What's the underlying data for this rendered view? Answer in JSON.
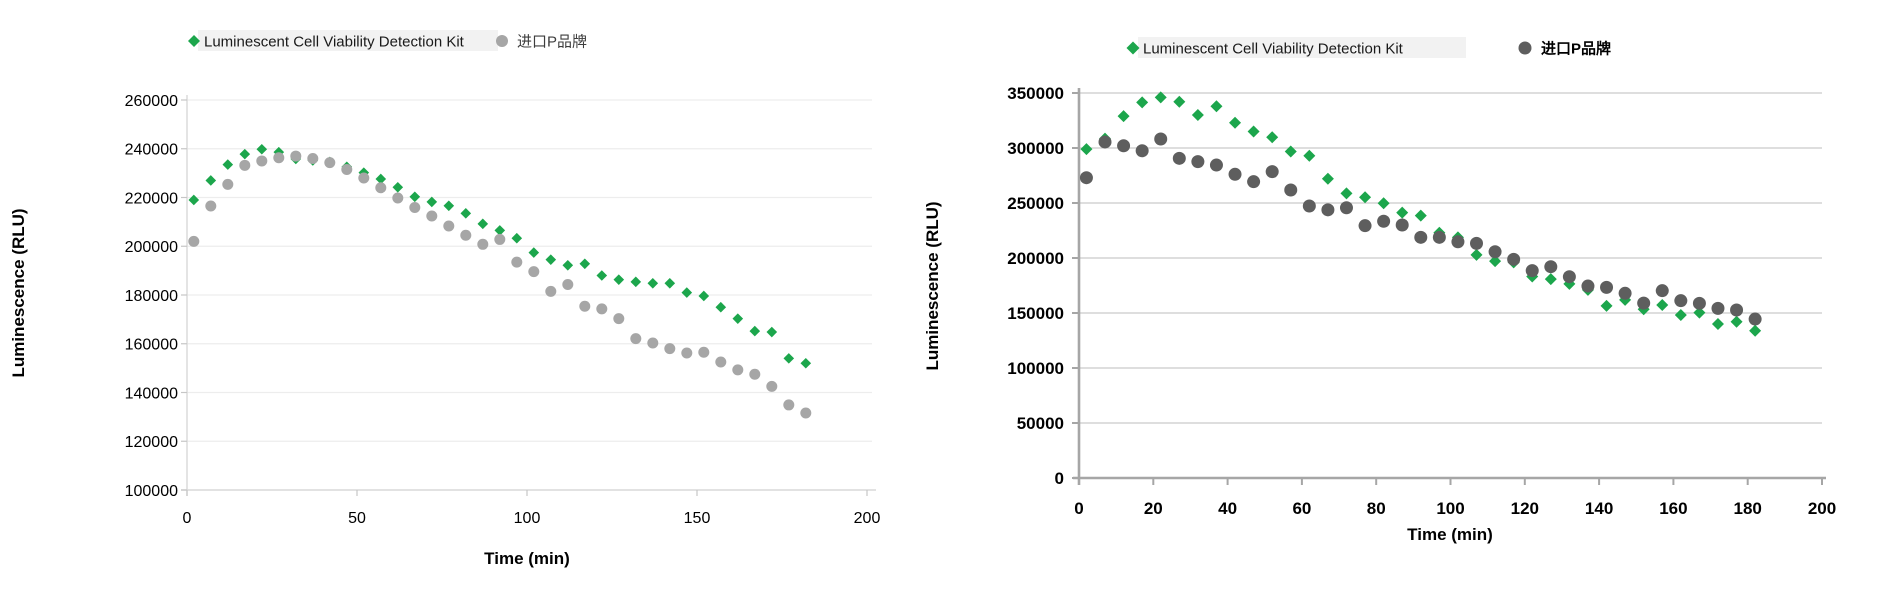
{
  "figure": {
    "background": "#ffffff"
  },
  "chart_data": [
    {
      "id": "left-chart",
      "type": "scatter",
      "title": "",
      "xlabel": "Time (min)",
      "ylabel": "Luminescence  (RLU)",
      "xlim": [
        0,
        200
      ],
      "ylim": [
        100000,
        260000
      ],
      "xticks": [
        0,
        50,
        100,
        150,
        200
      ],
      "yticks": [
        100000,
        120000,
        140000,
        160000,
        180000,
        200000,
        220000,
        240000,
        260000
      ],
      "grid": "horizontal",
      "legend_position": "top",
      "x": [
        2,
        7,
        12,
        17,
        22,
        27,
        32,
        37,
        42,
        47,
        52,
        57,
        62,
        67,
        72,
        77,
        82,
        87,
        92,
        97,
        102,
        107,
        112,
        117,
        122,
        127,
        132,
        137,
        142,
        147,
        152,
        157,
        162,
        167,
        172,
        177,
        182
      ],
      "series": [
        {
          "name": "Luminescent Cell Viability Detection Kit",
          "marker": "diamond",
          "color": "#1CA64C",
          "values": [
            219000,
            227000,
            233500,
            237800,
            239800,
            238600,
            235800,
            235200,
            234600,
            232600,
            230200,
            227600,
            224200,
            220300,
            218200,
            216600,
            213500,
            209200,
            206500,
            203300,
            197400,
            194500,
            192200,
            192800,
            188000,
            186300,
            185400,
            184800,
            184800,
            181000,
            179600,
            175000,
            170300,
            165200,
            164800,
            154000,
            152000
          ]
        },
        {
          "name": "进口P品牌",
          "marker": "circle",
          "color": "#A6A6A6",
          "values": [
            202000,
            216500,
            225400,
            233200,
            235000,
            236300,
            237000,
            236000,
            234300,
            231500,
            228000,
            224000,
            219800,
            215900,
            212400,
            208300,
            204500,
            200800,
            202800,
            193500,
            189600,
            181500,
            184300,
            175400,
            174300,
            170300,
            162100,
            160300,
            158000,
            156200,
            156500,
            152500,
            149300,
            147500,
            142500,
            134900,
            131600
          ]
        }
      ]
    },
    {
      "id": "right-chart",
      "type": "scatter",
      "title": "",
      "xlabel": "Time  (min)",
      "ylabel": "Luminescence  (RLU)",
      "xlim": [
        0,
        200
      ],
      "ylim": [
        0,
        350000
      ],
      "xticks": [
        0,
        20,
        40,
        60,
        80,
        100,
        120,
        140,
        160,
        180,
        200
      ],
      "yticks": [
        0,
        50000,
        100000,
        150000,
        200000,
        250000,
        300000,
        350000
      ],
      "grid": "horizontal",
      "legend_position": "top",
      "x": [
        2,
        7,
        12,
        17,
        22,
        27,
        32,
        37,
        42,
        47,
        52,
        57,
        62,
        67,
        72,
        77,
        82,
        87,
        92,
        97,
        102,
        107,
        112,
        117,
        122,
        127,
        132,
        137,
        142,
        147,
        152,
        157,
        162,
        167,
        172,
        177,
        182
      ],
      "series": [
        {
          "name": "Luminescent Cell Viability Detection Kit",
          "marker": "diamond",
          "color": "#1CA64C",
          "values": [
            299000,
            308500,
            329000,
            341500,
            346000,
            342000,
            330000,
            338000,
            323000,
            315000,
            309800,
            296800,
            293000,
            272000,
            258800,
            255200,
            249800,
            241200,
            238500,
            223000,
            218800,
            202800,
            197200,
            196000,
            183200,
            180800,
            176500,
            171000,
            156500,
            161900,
            153400,
            157300,
            148200,
            150300,
            140000,
            142100,
            133900
          ]
        },
        {
          "name": "进口P品牌",
          "marker": "circle",
          "color": "#5E5E5E",
          "values": [
            273000,
            305500,
            302000,
            297500,
            308200,
            290600,
            287600,
            284500,
            276100,
            269400,
            278500,
            261800,
            247300,
            243800,
            245700,
            229400,
            233400,
            230000,
            218800,
            218800,
            214800,
            213300,
            205700,
            198800,
            188500,
            192100,
            183000,
            174500,
            173300,
            167900,
            159000,
            170300,
            161200,
            158800,
            154200,
            152700,
            144500
          ]
        }
      ]
    }
  ]
}
